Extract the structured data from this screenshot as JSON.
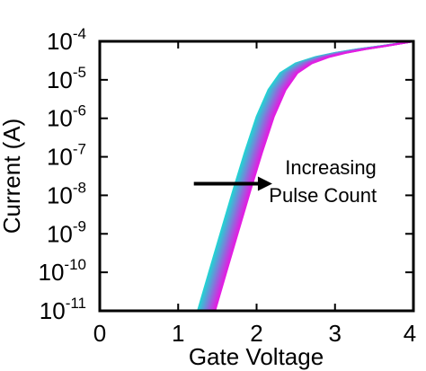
{
  "chart_data": {
    "type": "line",
    "title": "",
    "xlabel": "Gate Voltage",
    "ylabel": "Current (A)",
    "xlim": [
      0,
      4
    ],
    "ylim": [
      1e-11,
      0.0001
    ],
    "yscale": "log",
    "grid": false,
    "legend": "none",
    "x_ticks": [
      0,
      1,
      2,
      3,
      4
    ],
    "y_ticks": [
      {
        "value": 0.0001,
        "base": "10",
        "exp": "-4"
      },
      {
        "value": 1e-05,
        "base": "10",
        "exp": "-5"
      },
      {
        "value": 1e-06,
        "base": "10",
        "exp": "-6"
      },
      {
        "value": 1e-07,
        "base": "10",
        "exp": "-7"
      },
      {
        "value": 1e-08,
        "base": "10",
        "exp": "-8"
      },
      {
        "value": 1e-09,
        "base": "10",
        "exp": "-9"
      },
      {
        "value": 1e-10,
        "base": "10",
        "exp": "-10"
      },
      {
        "value": 1e-11,
        "base": "10",
        "exp": "-11"
      }
    ],
    "curve_family": {
      "count": 16,
      "color_start": "#22d3d3",
      "color_end": "#e21ee2",
      "threshold_shift_v": [
        0.0,
        0.22
      ],
      "shape_x": [
        1.25,
        1.4,
        1.55,
        1.7,
        1.85,
        2.0,
        2.15,
        2.3,
        2.5,
        2.75,
        3.0,
        3.3,
        3.6,
        4.0
      ],
      "shape_y": [
        1e-11,
        1.1e-10,
        1.2e-09,
        1.3e-08,
        1.3e-07,
        1.1e-06,
        5.5e-06,
        1.5e-05,
        2.7e-05,
        3.9e-05,
        5e-05,
        6.3e-05,
        7.6e-05,
        0.0001
      ]
    },
    "annotation": {
      "line1": "Increasing",
      "line2": "Pulse Count",
      "arrow_from": [
        1.2,
        2e-08
      ],
      "arrow_to": [
        2.2,
        2e-08
      ],
      "text_anchor": [
        2.33,
        3.2e-08
      ]
    }
  }
}
